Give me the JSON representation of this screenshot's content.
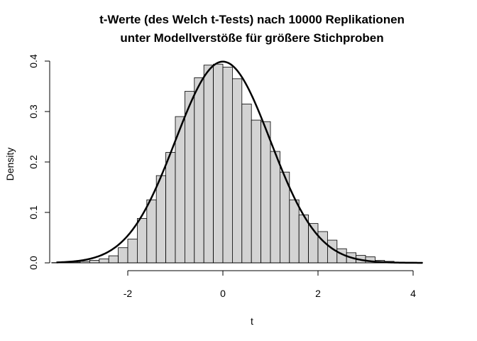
{
  "chart_data": {
    "type": "bar",
    "title_lines": [
      "t-Werte (des Welch t-Tests) nach 10000 Replikationen",
      "unter Modellverstöße für größere Stichproben"
    ],
    "xlabel": "t",
    "ylabel": "Density",
    "xlim": [
      -3.5,
      4.4
    ],
    "ylim": [
      0,
      0.4
    ],
    "x_ticks": [
      -2,
      0,
      2,
      4
    ],
    "x_tick_labels": [
      "-2",
      "0",
      "2",
      "4"
    ],
    "y_ticks": [
      0.0,
      0.1,
      0.2,
      0.3,
      0.4
    ],
    "y_tick_labels": [
      "0.0",
      "0.1",
      "0.2",
      "0.3",
      "0.4"
    ],
    "bin_width": 0.2,
    "bar_fill": "#d3d3d3",
    "curve_color": "#000000",
    "grid": false,
    "histogram": {
      "bin_starts": [
        -3.6,
        -3.4,
        -3.2,
        -3.0,
        -2.8,
        -2.6,
        -2.4,
        -2.2,
        -2.0,
        -1.8,
        -1.6,
        -1.4,
        -1.2,
        -1.0,
        -0.8,
        -0.6,
        -0.4,
        -0.2,
        0.0,
        0.2,
        0.4,
        0.6,
        0.8,
        1.0,
        1.2,
        1.4,
        1.6,
        1.8,
        2.0,
        2.2,
        2.4,
        2.6,
        2.8,
        3.0,
        3.2,
        3.4,
        3.6,
        3.8,
        4.0
      ],
      "densities": [
        0.0005,
        0.0005,
        0.0015,
        0.003,
        0.005,
        0.008,
        0.014,
        0.03,
        0.047,
        0.088,
        0.125,
        0.173,
        0.219,
        0.29,
        0.34,
        0.367,
        0.392,
        0.394,
        0.388,
        0.365,
        0.315,
        0.283,
        0.28,
        0.221,
        0.18,
        0.125,
        0.095,
        0.078,
        0.062,
        0.045,
        0.028,
        0.02,
        0.015,
        0.012,
        0.005,
        0.003,
        0.0015,
        0.001,
        0.0005
      ]
    },
    "curve": {
      "name": "",
      "distribution": "standard normal density",
      "x_range": [
        -3.5,
        4.2
      ]
    }
  }
}
